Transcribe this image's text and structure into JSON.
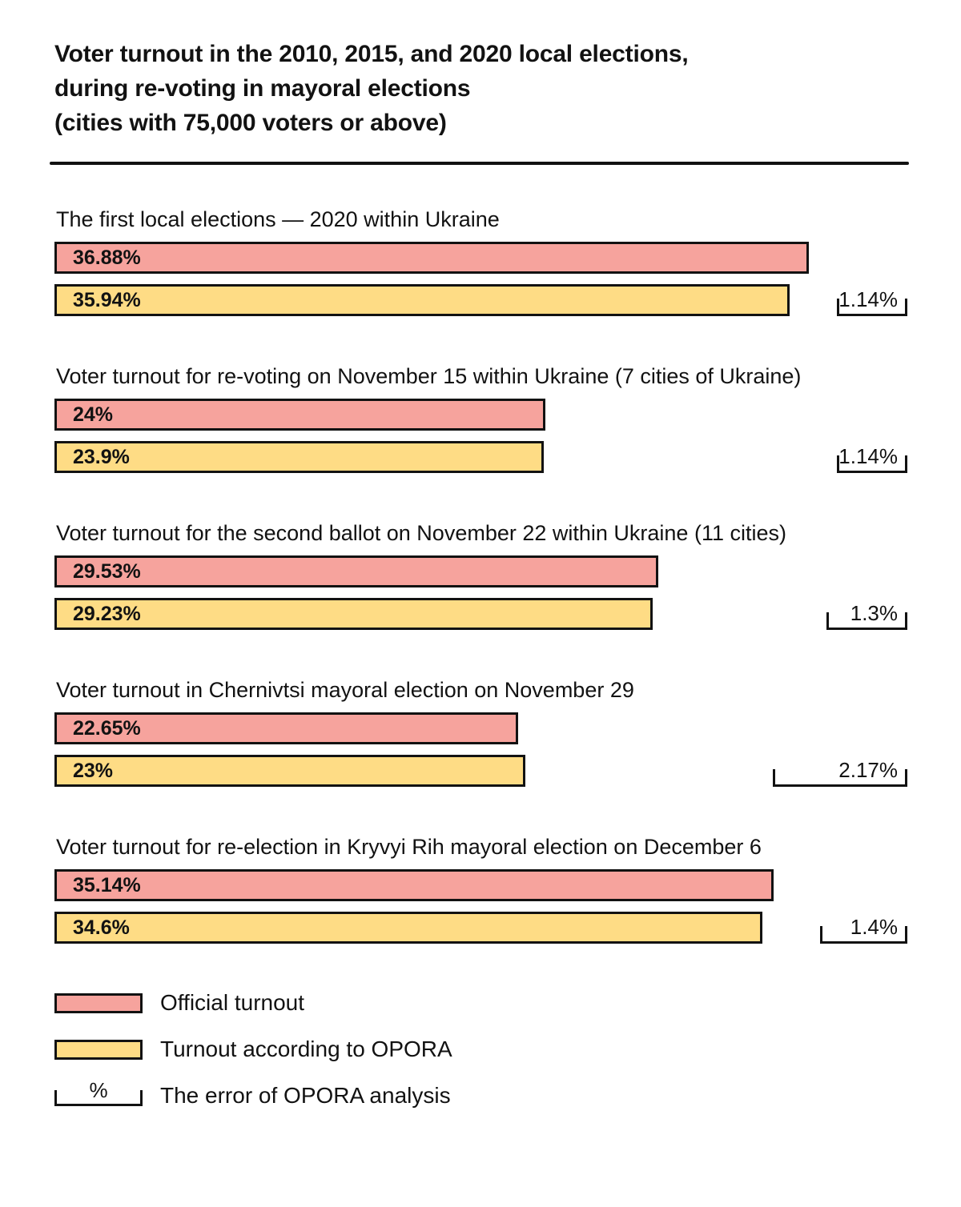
{
  "title": {
    "line1": "Voter turnout in the 2010, 2015, and 2020 local elections,",
    "line2": "during re-voting in mayoral elections",
    "line3": "(cities with 75,000 voters or above)"
  },
  "colors": {
    "official_bar": "#F6A39D",
    "opora_bar": "#FEDC85",
    "outline": "#121212",
    "background": "#FFFFFF"
  },
  "chart_data": {
    "type": "bar",
    "orientation": "horizontal",
    "unit": "%",
    "title": "Voter turnout in the 2010, 2015, and 2020 local elections, during re-voting in mayoral elections (cities with 75,000 voters or above)",
    "series_names": [
      "Official turnout",
      "Turnout according to OPORA",
      "The error of OPORA analysis"
    ],
    "groups": [
      {
        "label": "The first local elections — 2020 within Ukraine",
        "official_pct": 36.88,
        "official_label": "36.88%",
        "opora_pct": 35.94,
        "opora_label": "35.94%",
        "error_pct": 1.14,
        "error_label": "1.14%"
      },
      {
        "label": "Voter turnout for re-voting on November 15 within Ukraine (7 cities of Ukraine)",
        "official_pct": 24,
        "official_label": "24%",
        "opora_pct": 23.9,
        "opora_label": "23.9%",
        "error_pct": 1.14,
        "error_label": "1.14%"
      },
      {
        "label": "Voter turnout for the second ballot on November 22 within Ukraine (11 cities)",
        "official_pct": 29.53,
        "official_label": "29.53%",
        "opora_pct": 29.23,
        "opora_label": "29.23%",
        "error_pct": 1.3,
        "error_label": "1.3%"
      },
      {
        "label": "Voter turnout in Chernivtsi mayoral election on November 29",
        "official_pct": 22.65,
        "official_label": "22.65%",
        "opora_pct": 23,
        "opora_label": "23%",
        "error_pct": 2.17,
        "error_label": "2.17%"
      },
      {
        "label": "Voter turnout for re-election in Kryvyi Rih mayoral election on December 6",
        "official_pct": 35.14,
        "official_label": "35.14%",
        "opora_pct": 34.6,
        "opora_label": "34.6%",
        "error_pct": 1.4,
        "error_label": "1.4%"
      }
    ],
    "legend": [
      {
        "label": "Official turnout"
      },
      {
        "label": "Turnout according to OPORA"
      },
      {
        "label": "The error of OPORA analysis",
        "symbol": "%"
      }
    ]
  }
}
